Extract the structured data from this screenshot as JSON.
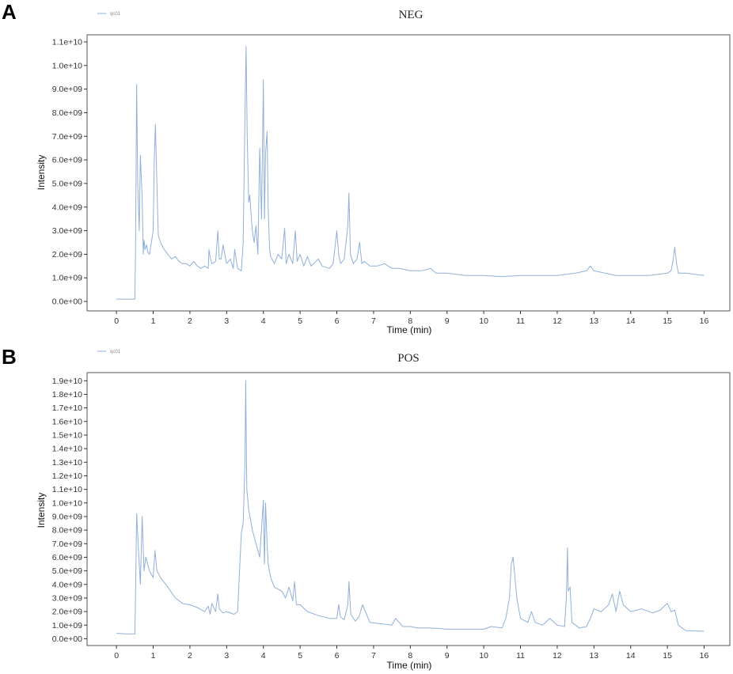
{
  "chart_data": [
    {
      "panel": "A",
      "type": "line",
      "title": "NEG",
      "xlabel": "Time (min)",
      "ylabel": "Intensity",
      "legend": {
        "label": "qc01",
        "position": "top-left"
      },
      "xlim": [
        -0.8,
        16.7
      ],
      "ylim": [
        -400000000.0,
        11300000000.0
      ],
      "xticks": [
        0,
        1,
        2,
        3,
        4,
        5,
        6,
        7,
        8,
        9,
        10,
        11,
        12,
        13,
        14,
        15,
        16
      ],
      "yticks": [
        0,
        1000000000.0,
        2000000000.0,
        3000000000.0,
        4000000000.0,
        5000000000.0,
        6000000000.0,
        7000000000.0,
        8000000000.0,
        9000000000.0,
        10000000000.0,
        11000000000.0
      ],
      "ytick_labels": [
        "0.0e+00",
        "1.0e+09",
        "2.0e+09",
        "3.0e+09",
        "4.0e+09",
        "5.0e+09",
        "6.0e+09",
        "7.0e+09",
        "8.0e+09",
        "9.0e+09",
        "1.0e+10",
        "1.1e+10"
      ],
      "grid": false,
      "series": [
        {
          "color": "#8fb0d8",
          "x": [
            0,
            0.2,
            0.5,
            0.52,
            0.55,
            0.58,
            0.62,
            0.65,
            0.7,
            0.73,
            0.75,
            0.78,
            0.82,
            0.85,
            0.9,
            1.0,
            1.03,
            1.06,
            1.1,
            1.14,
            1.2,
            1.3,
            1.4,
            1.5,
            1.6,
            1.7,
            1.8,
            1.9,
            2.0,
            2.1,
            2.2,
            2.3,
            2.4,
            2.5,
            2.52,
            2.56,
            2.6,
            2.7,
            2.76,
            2.8,
            2.85,
            2.9,
            3.0,
            3.1,
            3.18,
            3.22,
            3.3,
            3.4,
            3.45,
            3.5,
            3.53,
            3.56,
            3.6,
            3.63,
            3.66,
            3.7,
            3.75,
            3.8,
            3.85,
            3.9,
            3.95,
            4.0,
            4.03,
            4.06,
            4.1,
            4.13,
            4.17,
            4.2,
            4.3,
            4.4,
            4.5,
            4.58,
            4.62,
            4.7,
            4.8,
            4.87,
            4.92,
            5.0,
            5.1,
            5.2,
            5.3,
            5.5,
            5.6,
            5.8,
            5.9,
            6.0,
            6.05,
            6.1,
            6.2,
            6.3,
            6.33,
            6.37,
            6.45,
            6.55,
            6.62,
            6.68,
            6.75,
            6.9,
            7.1,
            7.3,
            7.5,
            7.7,
            8.0,
            8.3,
            8.55,
            8.7,
            9.0,
            9.5,
            10.0,
            10.5,
            11.0,
            11.5,
            12.0,
            12.5,
            12.8,
            12.9,
            13.0,
            13.3,
            13.6,
            14.0,
            14.5,
            15.0,
            15.1,
            15.15,
            15.2,
            15.25,
            15.3,
            15.5,
            16.0
          ],
          "y": [
            100000000.0,
            100000000.0,
            100000000.0,
            2000000000.0,
            9200000000.0,
            5000000000.0,
            3000000000.0,
            6200000000.0,
            4400000000.0,
            2000000000.0,
            2600000000.0,
            2200000000.0,
            2400000000.0,
            2100000000.0,
            2000000000.0,
            3000000000.0,
            6000000000.0,
            7500000000.0,
            5000000000.0,
            2800000000.0,
            2500000000.0,
            2200000000.0,
            2000000000.0,
            1800000000.0,
            1900000000.0,
            1700000000.0,
            1600000000.0,
            1600000000.0,
            1500000000.0,
            1700000000.0,
            1500000000.0,
            1400000000.0,
            1500000000.0,
            1400000000.0,
            2200000000.0,
            1800000000.0,
            1600000000.0,
            1700000000.0,
            3000000000.0,
            1800000000.0,
            1800000000.0,
            2400000000.0,
            1600000000.0,
            1800000000.0,
            1400000000.0,
            2200000000.0,
            1400000000.0,
            1300000000.0,
            2500000000.0,
            8000000000.0,
            10800000000.0,
            7000000000.0,
            4200000000.0,
            4500000000.0,
            3800000000.0,
            3000000000.0,
            2500000000.0,
            3200000000.0,
            2000000000.0,
            6500000000.0,
            3500000000.0,
            9400000000.0,
            3500000000.0,
            6300000000.0,
            7200000000.0,
            4000000000.0,
            2200000000.0,
            1900000000.0,
            1600000000.0,
            2000000000.0,
            1800000000.0,
            3100000000.0,
            1600000000.0,
            2000000000.0,
            1600000000.0,
            3000000000.0,
            1700000000.0,
            2000000000.0,
            1500000000.0,
            1900000000.0,
            1500000000.0,
            1800000000.0,
            1500000000.0,
            1400000000.0,
            1600000000.0,
            3000000000.0,
            2000000000.0,
            1600000000.0,
            1800000000.0,
            3200000000.0,
            4600000000.0,
            2000000000.0,
            1600000000.0,
            1800000000.0,
            2500000000.0,
            1600000000.0,
            1700000000.0,
            1500000000.0,
            1500000000.0,
            1600000000.0,
            1400000000.0,
            1400000000.0,
            1300000000.0,
            1300000000.0,
            1400000000.0,
            1200000000.0,
            1200000000.0,
            1100000000.0,
            1100000000.0,
            1050000000.0,
            1100000000.0,
            1100000000.0,
            1100000000.0,
            1200000000.0,
            1300000000.0,
            1500000000.0,
            1300000000.0,
            1200000000.0,
            1100000000.0,
            1100000000.0,
            1100000000.0,
            1200000000.0,
            1300000000.0,
            1700000000.0,
            2300000000.0,
            1600000000.0,
            1200000000.0,
            1200000000.0,
            1100000000.0
          ]
        }
      ]
    },
    {
      "panel": "B",
      "type": "line",
      "title": "POS",
      "xlabel": "Time (min)",
      "ylabel": "Intensity",
      "legend": {
        "label": "qc01",
        "position": "top-left"
      },
      "xlim": [
        -0.8,
        16.7
      ],
      "ylim": [
        -500000000.0,
        19600000000.0
      ],
      "xticks": [
        0,
        1,
        2,
        3,
        4,
        5,
        6,
        7,
        8,
        9,
        10,
        11,
        12,
        13,
        14,
        15,
        16
      ],
      "yticks": [
        0,
        1000000000.0,
        2000000000.0,
        3000000000.0,
        4000000000.0,
        5000000000.0,
        6000000000.0,
        7000000000.0,
        8000000000.0,
        9000000000.0,
        10000000000.0,
        11000000000.0,
        12000000000.0,
        13000000000.0,
        14000000000.0,
        15000000000.0,
        16000000000.0,
        17000000000.0,
        18000000000.0,
        19000000000.0
      ],
      "ytick_labels": [
        "0.0e+00",
        "1.0e+09",
        "2.0e+09",
        "3.0e+09",
        "4.0e+09",
        "5.0e+09",
        "6.0e+09",
        "7.0e+09",
        "8.0e+09",
        "9.0e+09",
        "1.0e+10",
        "1.1e+10",
        "1.2e+10",
        "1.3e+10",
        "1.4e+10",
        "1.5e+10",
        "1.6e+10",
        "1.7e+10",
        "1.8e+10",
        "1.9e+10"
      ],
      "grid": false,
      "series": [
        {
          "color": "#8fb0d8",
          "x": [
            0,
            0.3,
            0.5,
            0.52,
            0.55,
            0.6,
            0.65,
            0.7,
            0.75,
            0.8,
            0.9,
            1.0,
            1.05,
            1.1,
            1.2,
            1.4,
            1.6,
            1.8,
            2.0,
            2.2,
            2.4,
            2.5,
            2.55,
            2.6,
            2.7,
            2.76,
            2.8,
            2.9,
            3.0,
            3.2,
            3.3,
            3.35,
            3.4,
            3.45,
            3.5,
            3.52,
            3.55,
            3.6,
            3.7,
            3.8,
            3.9,
            4.0,
            4.03,
            4.06,
            4.1,
            4.13,
            4.2,
            4.3,
            4.5,
            4.6,
            4.7,
            4.8,
            4.85,
            4.9,
            5.0,
            5.2,
            5.5,
            5.8,
            6.0,
            6.05,
            6.1,
            6.2,
            6.3,
            6.33,
            6.38,
            6.5,
            6.6,
            6.7,
            6.9,
            7.2,
            7.5,
            7.6,
            7.8,
            8.0,
            8.2,
            8.5,
            8.8,
            9.0,
            9.5,
            10.0,
            10.2,
            10.5,
            10.6,
            10.7,
            10.75,
            10.8,
            10.9,
            11.0,
            11.2,
            11.3,
            11.4,
            11.6,
            11.8,
            12.0,
            12.2,
            12.25,
            12.28,
            12.3,
            12.35,
            12.4,
            12.6,
            12.8,
            12.9,
            13.0,
            13.2,
            13.4,
            13.5,
            13.6,
            13.7,
            13.8,
            14.0,
            14.3,
            14.6,
            14.8,
            15.0,
            15.1,
            15.2,
            15.3,
            15.5,
            16.0
          ],
          "y": [
            400000000.0,
            350000000.0,
            350000000.0,
            3000000000.0,
            9200000000.0,
            6500000000.0,
            4000000000.0,
            9000000000.0,
            5000000000.0,
            6000000000.0,
            5000000000.0,
            4500000000.0,
            6500000000.0,
            5000000000.0,
            4500000000.0,
            3800000000.0,
            3000000000.0,
            2600000000.0,
            2500000000.0,
            2300000000.0,
            2000000000.0,
            2400000000.0,
            1800000000.0,
            2600000000.0,
            2000000000.0,
            3300000000.0,
            2200000000.0,
            1900000000.0,
            2000000000.0,
            1800000000.0,
            2000000000.0,
            5000000000.0,
            7800000000.0,
            8500000000.0,
            13000000000.0,
            19000000000.0,
            11000000000.0,
            9500000000.0,
            8000000000.0,
            7000000000.0,
            6000000000.0,
            10200000000.0,
            5500000000.0,
            10000000000.0,
            7000000000.0,
            5500000000.0,
            4500000000.0,
            3800000000.0,
            3500000000.0,
            3000000000.0,
            3800000000.0,
            2800000000.0,
            4200000000.0,
            2500000000.0,
            2500000000.0,
            2000000000.0,
            1700000000.0,
            1500000000.0,
            1500000000.0,
            2500000000.0,
            1600000000.0,
            1400000000.0,
            2500000000.0,
            4200000000.0,
            1800000000.0,
            1300000000.0,
            1600000000.0,
            2500000000.0,
            1200000000.0,
            1100000000.0,
            1000000000.0,
            1500000000.0,
            900000000.0,
            900000000.0,
            800000000.0,
            800000000.0,
            750000000.0,
            700000000.0,
            700000000.0,
            700000000.0,
            900000000.0,
            800000000.0,
            1500000000.0,
            3000000000.0,
            5500000000.0,
            6000000000.0,
            3000000000.0,
            1500000000.0,
            1200000000.0,
            2000000000.0,
            1200000000.0,
            1000000000.0,
            1500000000.0,
            1000000000.0,
            900000000.0,
            3000000000.0,
            6700000000.0,
            3500000000.0,
            3800000000.0,
            1200000000.0,
            800000000.0,
            900000000.0,
            1500000000.0,
            2200000000.0,
            2000000000.0,
            2500000000.0,
            3300000000.0,
            2000000000.0,
            3500000000.0,
            2500000000.0,
            2000000000.0,
            2200000000.0,
            1900000000.0,
            2100000000.0,
            2600000000.0,
            2000000000.0,
            2100000000.0,
            1000000000.0,
            600000000.0,
            550000000.0
          ]
        }
      ]
    }
  ]
}
